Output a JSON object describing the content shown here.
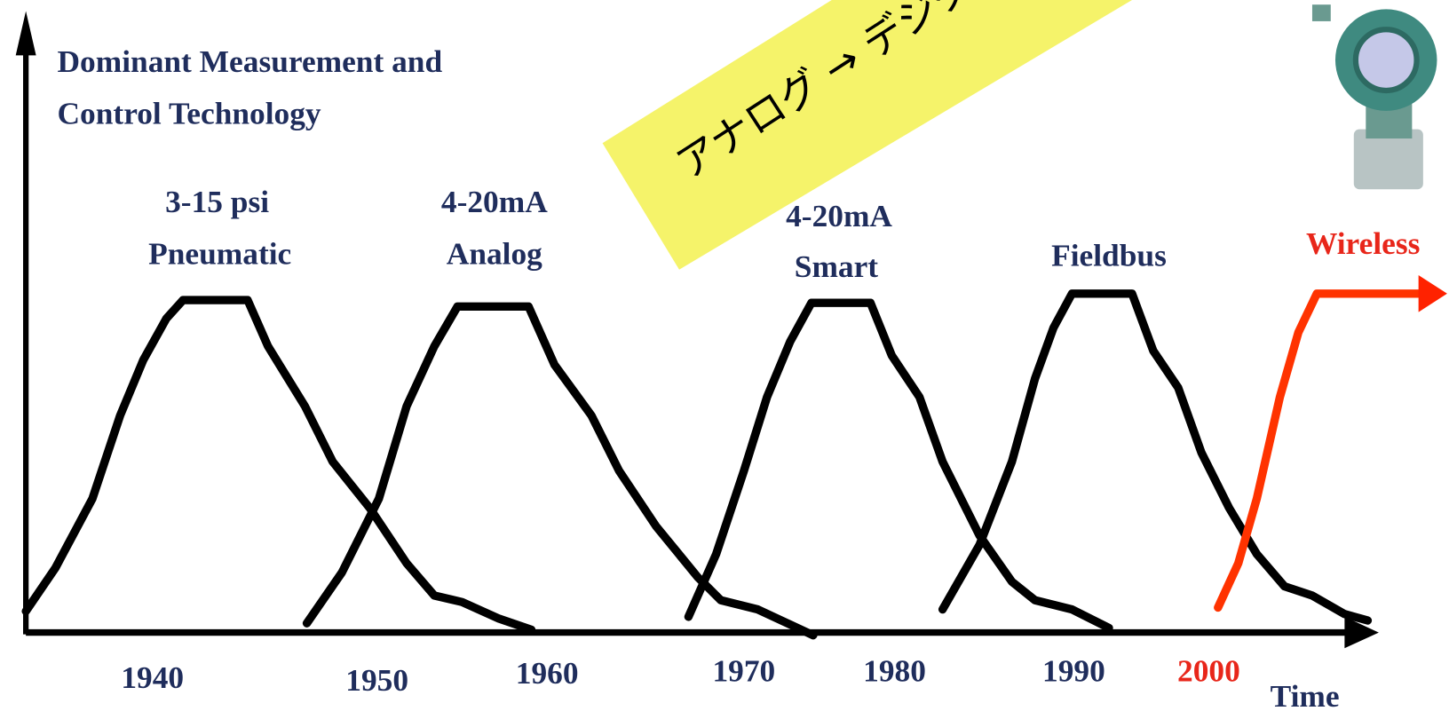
{
  "heading": [
    "Dominant Measurement and",
    "Control Technology"
  ],
  "technologies": [
    {
      "lines": [
        "3-15 psi",
        "Pneumatic"
      ]
    },
    {
      "lines": [
        "4-20mA",
        "Analog"
      ]
    },
    {
      "lines": [
        "4-20mA",
        "Smart"
      ]
    },
    {
      "lines": [
        "Fieldbus"
      ]
    },
    {
      "lines": [
        "Wireless"
      ]
    }
  ],
  "years": [
    "1940",
    "1950",
    "1960",
    "1970",
    "1980",
    "1990",
    "2000"
  ],
  "axis_label": "Time",
  "banner": "アナログ → デジタル"
}
